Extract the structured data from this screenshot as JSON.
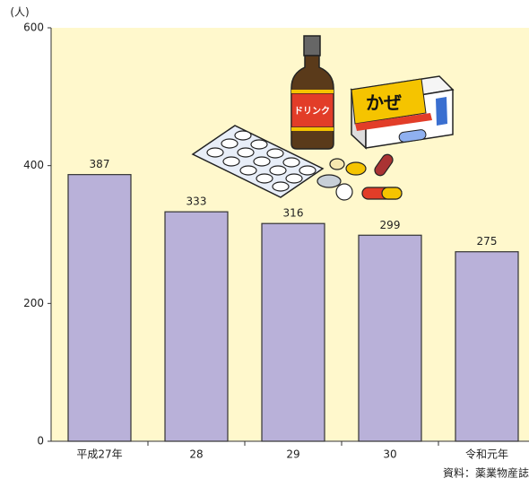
{
  "chart_data": {
    "type": "bar",
    "y_label": "(人)",
    "source": "資料：薬業物産誌",
    "categories": [
      "平成27年",
      "28",
      "29",
      "30",
      "令和元年"
    ],
    "values": [
      387,
      333,
      316,
      299,
      275
    ],
    "color": "#b9b1d9",
    "ylim": [
      0,
      600
    ],
    "yticks": [
      0,
      200,
      400,
      600
    ],
    "annotations": [
      "ドリンク",
      "かぜ"
    ]
  }
}
